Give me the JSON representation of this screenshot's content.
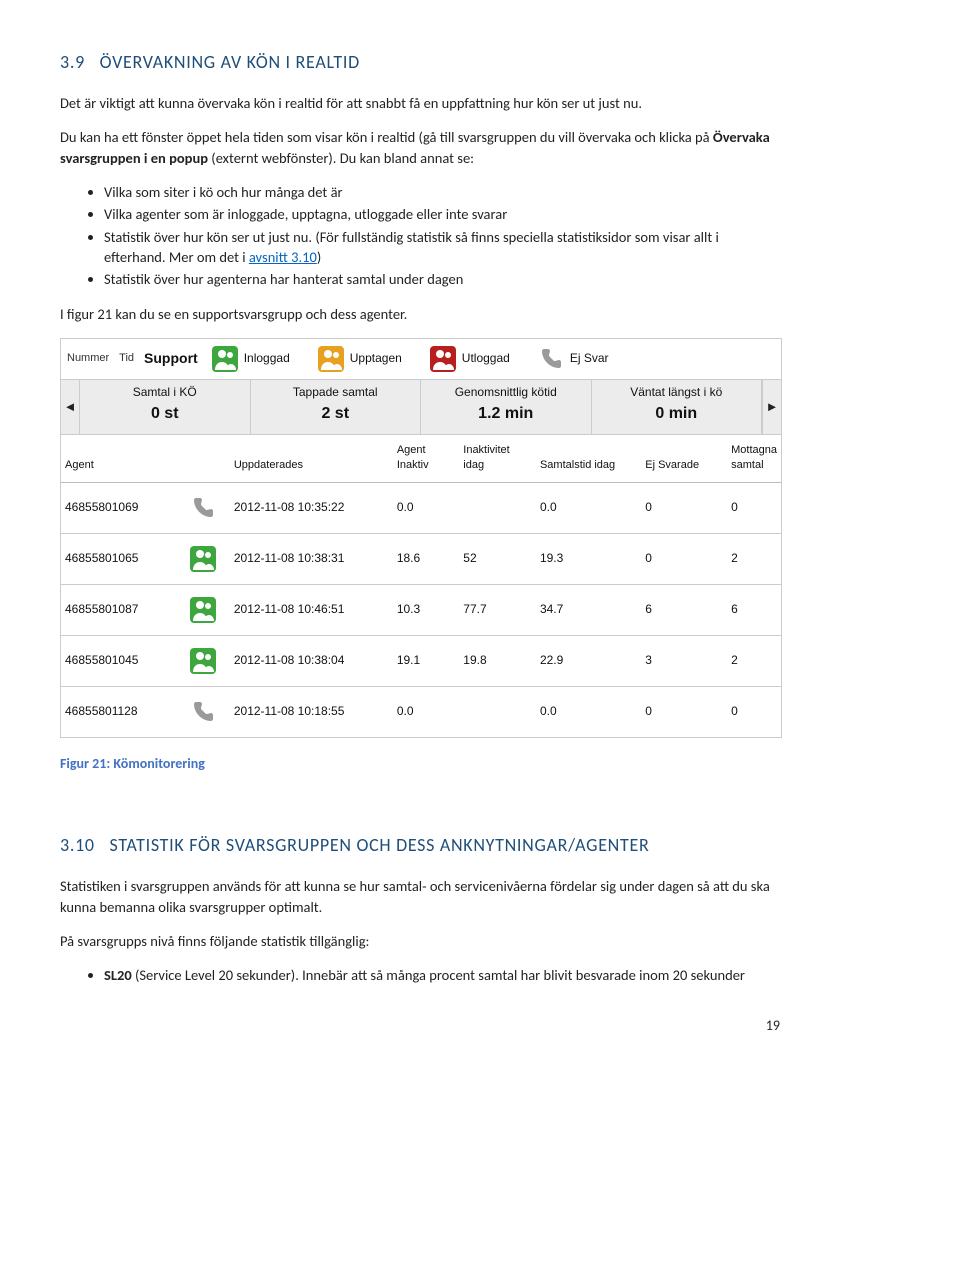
{
  "section39": {
    "number": "3.9",
    "title": "ÖVERVAKNING AV KÖN I REALTID",
    "p1": "Det är viktigt att kunna övervaka kön i realtid för att snabbt få en uppfattning hur kön ser ut just nu.",
    "p2_before": "Du kan ha ett fönster öppet hela tiden som visar kön i realtid (gå till svarsgruppen du vill övervaka och klicka på ",
    "p2_bold": "Övervaka svarsgruppen i en popup",
    "p2_after": " (externt webfönster). Du kan bland annat se:",
    "bullets": [
      "Vilka som siter i kö och hur många det är",
      "Vilka agenter som är inloggade, upptagna, utloggade eller inte svarar"
    ],
    "b3_before": "Statistik över hur kön ser ut just nu. (För fullständig statistik så finns speciella statistiksidor som visar allt i efterhand. Mer om det i ",
    "b3_link": "avsnitt 3.10",
    "b3_after": ")",
    "b4": "Statistik över hur agenterna har hanterat samtal under dagen",
    "p3": "I figur 21 kan du se en supportsvarsgrupp och dess agenter."
  },
  "monitor": {
    "nummer": "Nummer",
    "tid": "Tid",
    "support": "Support",
    "statuses": [
      {
        "label": "Inloggad",
        "color": "#3ea63e",
        "kind": "person"
      },
      {
        "label": "Upptagen",
        "color": "#e8a020",
        "kind": "person"
      },
      {
        "label": "Utloggad",
        "color": "#b82020",
        "kind": "person"
      },
      {
        "label": "Ej Svar",
        "color": "#999999",
        "kind": "phone"
      }
    ],
    "stats": [
      {
        "label": "Samtal i KÖ",
        "value": "0 st"
      },
      {
        "label": "Tappade samtal",
        "value": "2 st"
      },
      {
        "label": "Genomsnittlig kötid",
        "value": "1.2 min"
      },
      {
        "label": "Väntat längst i kö",
        "value": "0 min"
      }
    ],
    "nav_left": "◄",
    "nav_right": "►",
    "agent_headers": [
      "Agent",
      "",
      "Uppdaterades",
      "Agent Inaktiv",
      "Inaktivitet idag",
      "Samtalstid idag",
      "Ej Svarade",
      "Mottagna samtal"
    ],
    "rows": [
      {
        "agent": "46855801069",
        "icon": "phone",
        "updated": "2012-11-08 10:35:22",
        "inactive": "0.0",
        "inact_today": "",
        "talk": "0.0",
        "noanswer": "0",
        "recv": "0"
      },
      {
        "agent": "46855801065",
        "icon": "green",
        "updated": "2012-11-08 10:38:31",
        "inactive": "18.6",
        "inact_today": "52",
        "talk": "19.3",
        "noanswer": "0",
        "recv": "2"
      },
      {
        "agent": "46855801087",
        "icon": "green",
        "updated": "2012-11-08 10:46:51",
        "inactive": "10.3",
        "inact_today": "77.7",
        "talk": "34.7",
        "noanswer": "6",
        "recv": "6"
      },
      {
        "agent": "46855801045",
        "icon": "green",
        "updated": "2012-11-08 10:38:04",
        "inactive": "19.1",
        "inact_today": "19.8",
        "talk": "22.9",
        "noanswer": "3",
        "recv": "2"
      },
      {
        "agent": "46855801128",
        "icon": "phone",
        "updated": "2012-11-08 10:18:55",
        "inactive": "0.0",
        "inact_today": "",
        "talk": "0.0",
        "noanswer": "0",
        "recv": "0"
      }
    ]
  },
  "figure21": "Figur 21: Kömonitorering",
  "section310": {
    "number": "3.10",
    "title": "STATISTIK FÖR SVARSGRUPPEN OCH DESS ANKNYTNINGAR/AGENTER",
    "p1": "Statistiken i svarsgruppen används för att kunna se hur samtal- och servicenivåerna fördelar sig under dagen så att du ska kunna bemanna olika svarsgrupper optimalt.",
    "p2": "På svarsgrupps nivå finns följande statistik tillgänglig:",
    "b1_bold": "SL20",
    "b1_rest": " (Service Level 20 sekunder). Innebär att så många procent samtal har blivit besvarade inom 20 sekunder"
  },
  "page": "19",
  "colors": {
    "heading": "#1f4e79",
    "link": "#0563c1",
    "figure": "#4472c4",
    "green": "#3ea63e",
    "orange": "#e8a020",
    "red": "#b82020",
    "phone": "#9a9a9a",
    "border": "#cccccc",
    "band_bg": "#ececec"
  }
}
